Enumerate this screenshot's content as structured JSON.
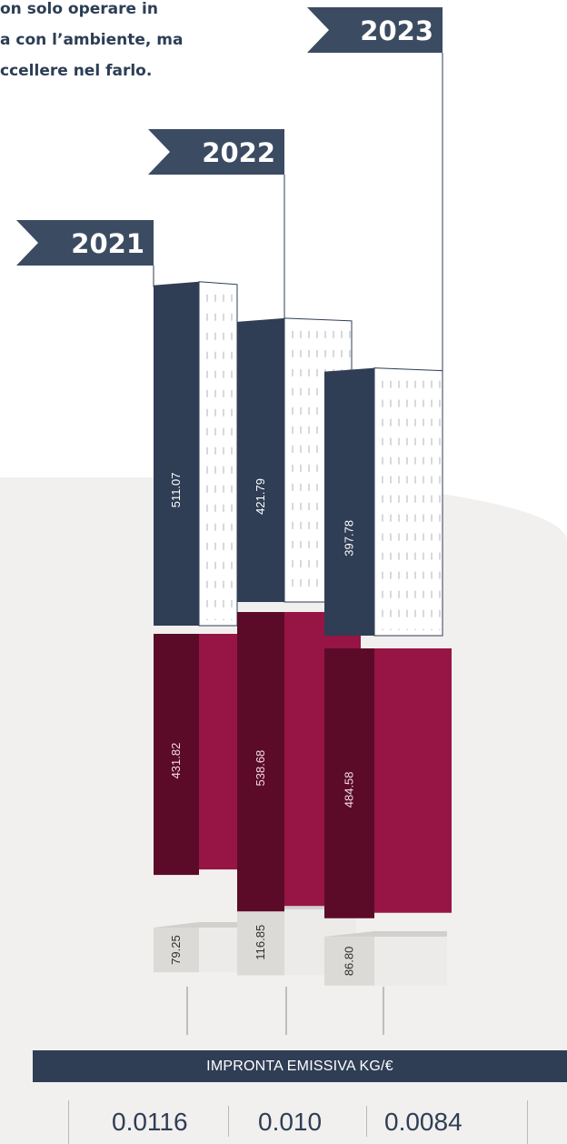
{
  "intro": {
    "lines": [
      "on solo operare in",
      "a con l’ambiente, ma",
      "ccellere nel farlo."
    ]
  },
  "chart_data": {
    "type": "bar",
    "categories": [
      "2021",
      "2022",
      "2023"
    ],
    "series": [
      {
        "values": [
          511.07,
          421.79,
          397.78
        ],
        "labels": [
          "511.07",
          "421.79",
          "397.78"
        ],
        "color": "#2f3e55"
      },
      {
        "values": [
          431.82,
          538.68,
          484.58
        ],
        "labels": [
          "431.82",
          "538.68",
          "484.58"
        ],
        "color": "#8b1540"
      },
      {
        "values": [
          79.25,
          116.85,
          86.8
        ],
        "labels": [
          "79.25",
          "116.85",
          "86.80"
        ],
        "color": "#e4e2df"
      }
    ]
  },
  "metric": {
    "label": "IMPRONTA EMISSIVA KG/€",
    "values": [
      "0.0116",
      "0.010",
      "0.0084"
    ]
  }
}
